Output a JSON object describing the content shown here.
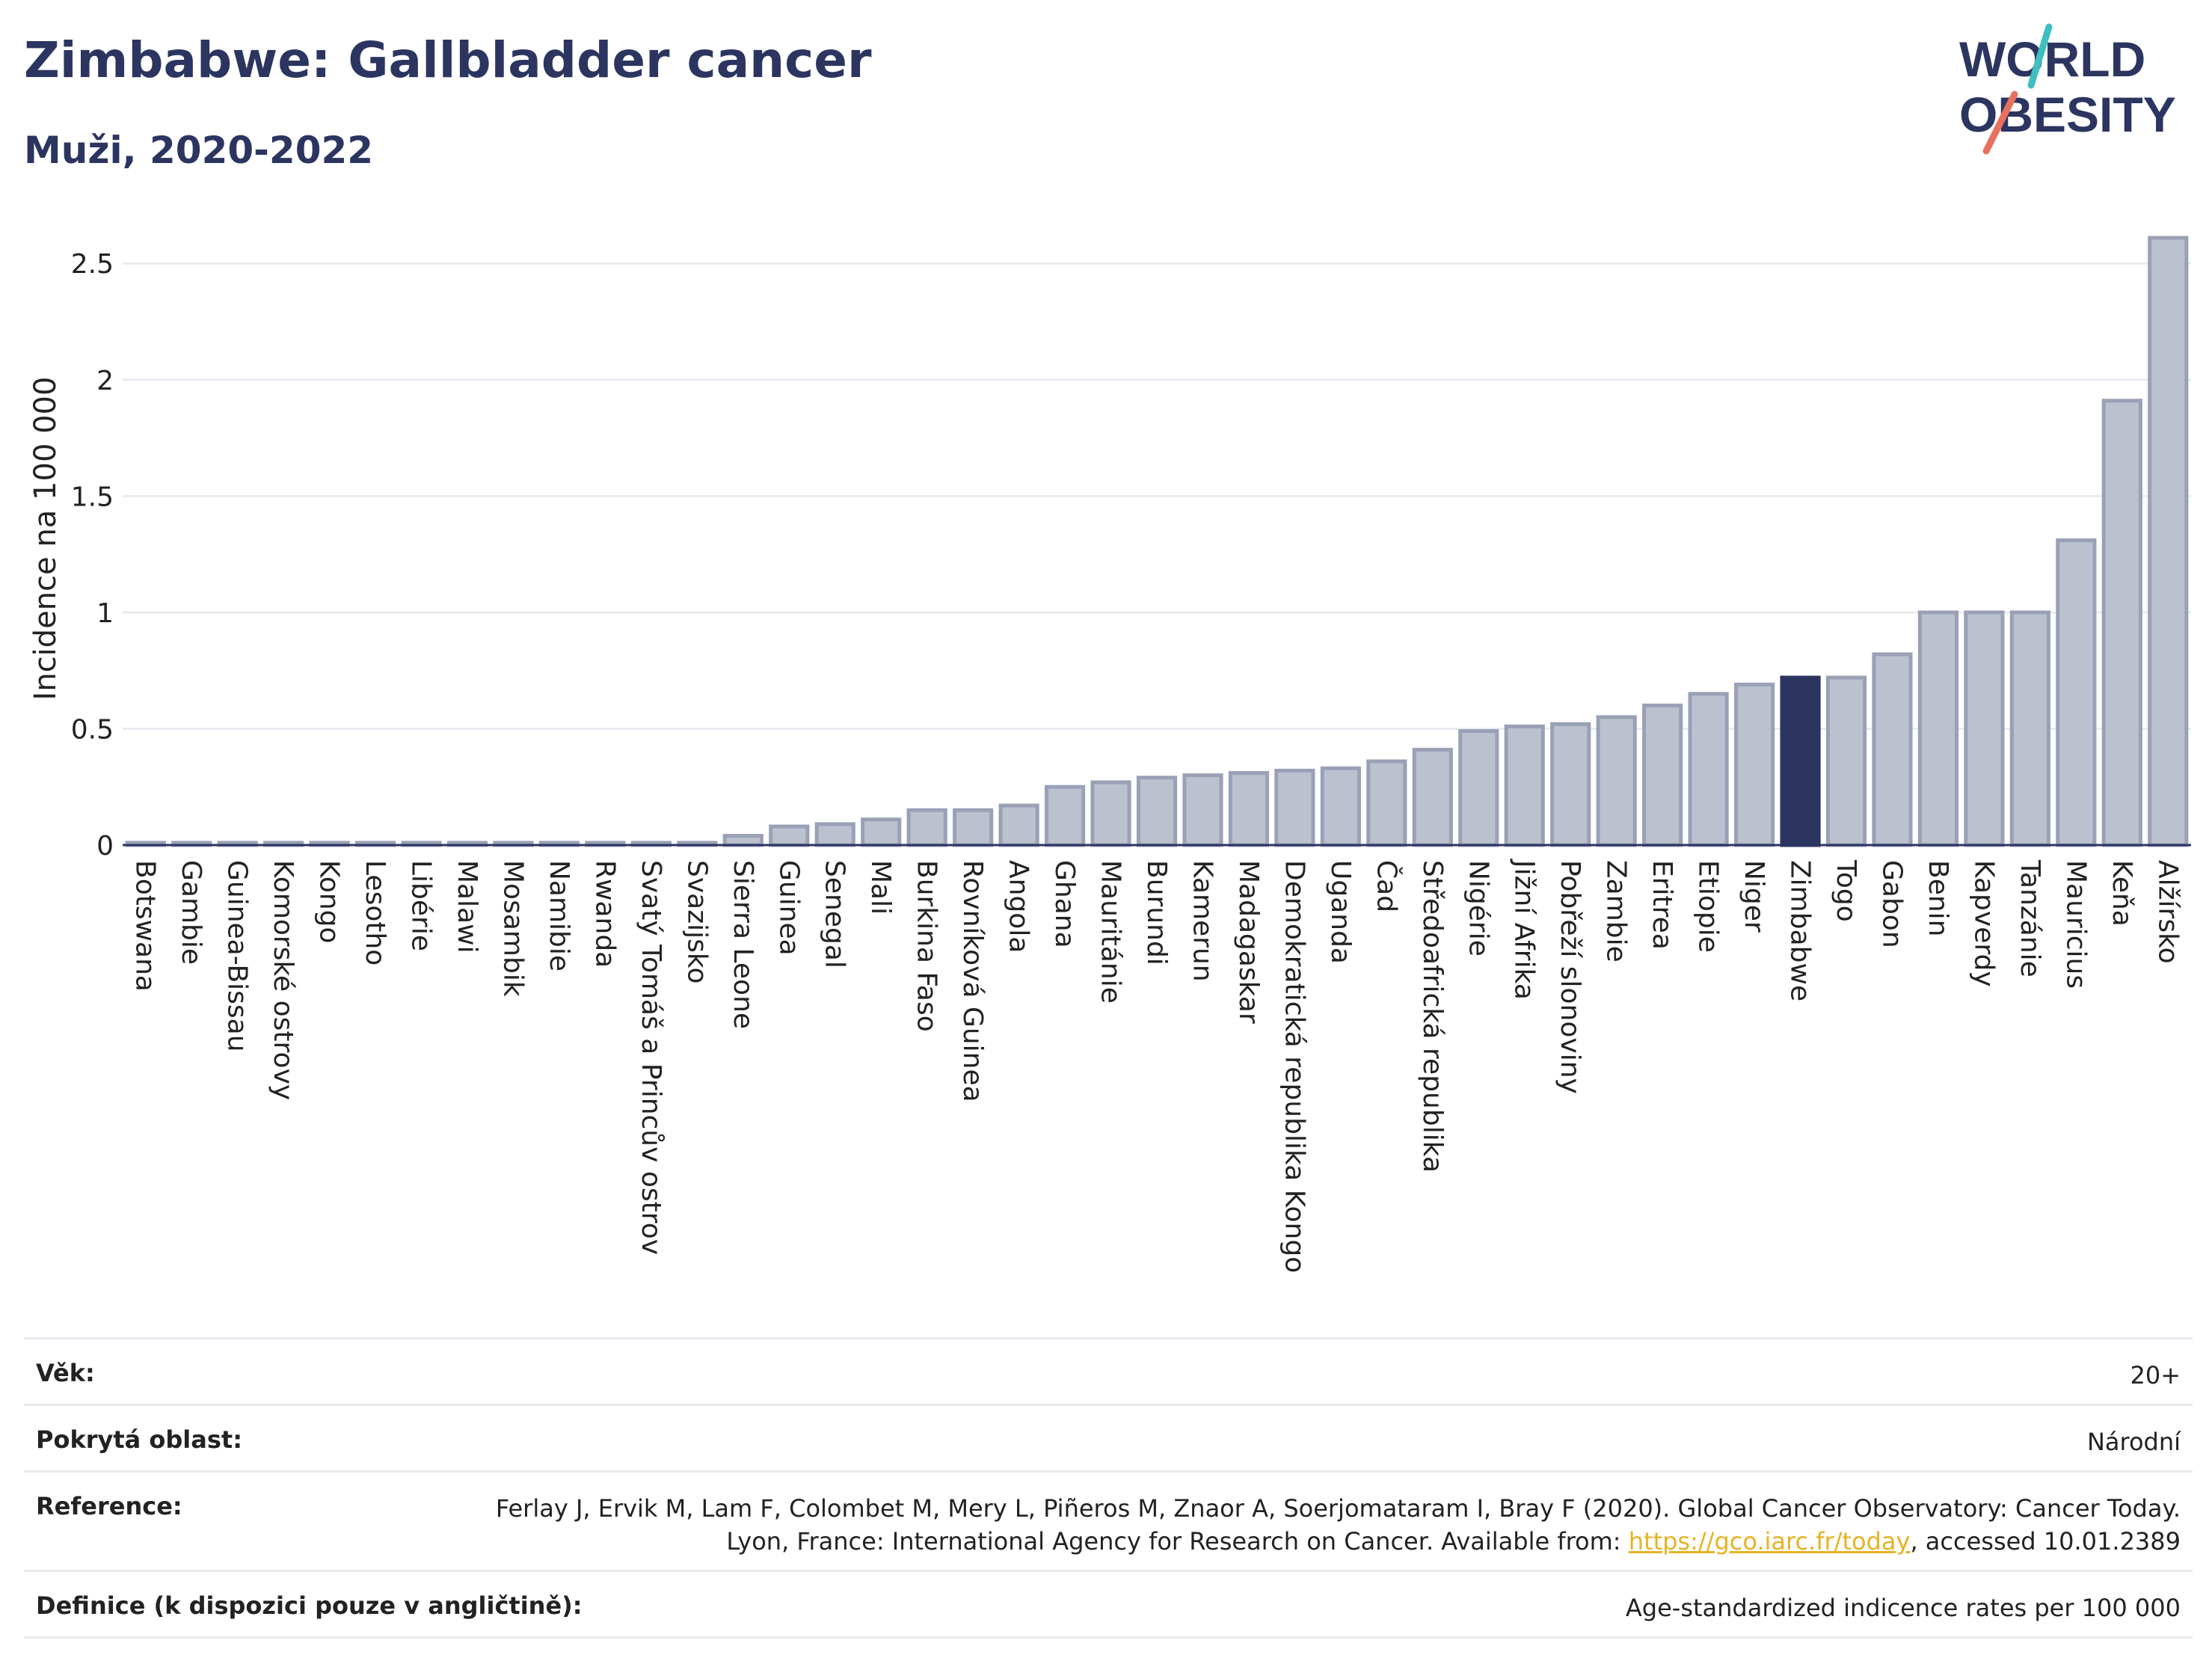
{
  "header": {
    "title": "Zimbabwe: Gallbladder cancer",
    "subtitle": "Muži, 2020-2022"
  },
  "logo": {
    "line1": "WORLD",
    "line2": "OBESITY",
    "colors": {
      "text": "#2c3560",
      "slash_top": "#3fbfbf",
      "slash_bottom": "#e8705f"
    }
  },
  "colors": {
    "bar_fill": "#bcc1cf",
    "bar_stroke": "#9aa1b6",
    "highlight": "#2c3560",
    "grid": "#e8ebf0",
    "axis": "#2c3560"
  },
  "chart_data": {
    "type": "bar",
    "title": "Zimbabwe: Gallbladder cancer",
    "subtitle": "Muži, 2020-2022",
    "ylabel": "Incidence na 100 000",
    "xlabel": "",
    "ylim": [
      0,
      2.7
    ],
    "yticks": [
      0,
      0.5,
      1,
      1.5,
      2,
      2.5
    ],
    "ytick_labels": [
      "0",
      "0.5",
      "1",
      "1.5",
      "2",
      "2.5"
    ],
    "grid": true,
    "highlight": "Zimbabwe",
    "categories": [
      "Botswana",
      "Gambie",
      "Guinea-Bissau",
      "Komorské ostrovy",
      "Kongo",
      "Lesotho",
      "Libérie",
      "Malawi",
      "Mosambik",
      "Namibie",
      "Rwanda",
      "Svatý Tomáš a Princův ostrov",
      "Svazijsko",
      "Sierra Leone",
      "Guinea",
      "Senegal",
      "Mali",
      "Burkina Faso",
      "Rovníková Guinea",
      "Angola",
      "Ghana",
      "Mauritánie",
      "Burundi",
      "Kamerun",
      "Madagaskar",
      "Demokratická republika Kongo",
      "Uganda",
      "Čad",
      "Středoafrická republika",
      "Nigérie",
      "Jižní Afrika",
      "Pobřeží slonoviny",
      "Zambie",
      "Eritrea",
      "Etiopie",
      "Niger",
      "Zimbabwe",
      "Togo",
      "Gabon",
      "Benin",
      "Kapverdy",
      "Tanzánie",
      "Mauricius",
      "Keňa",
      "Alžírsko"
    ],
    "values": [
      0.01,
      0.01,
      0.01,
      0.01,
      0.01,
      0.01,
      0.01,
      0.01,
      0.01,
      0.01,
      0.01,
      0.01,
      0.01,
      0.04,
      0.08,
      0.09,
      0.11,
      0.15,
      0.15,
      0.17,
      0.25,
      0.27,
      0.29,
      0.3,
      0.31,
      0.32,
      0.33,
      0.36,
      0.41,
      0.49,
      0.51,
      0.52,
      0.55,
      0.6,
      0.65,
      0.69,
      0.72,
      0.72,
      0.82,
      1.0,
      1.0,
      1.0,
      1.31,
      1.91,
      2.61
    ]
  },
  "meta": {
    "rows": [
      {
        "label": "Věk:",
        "value": "20+"
      },
      {
        "label": "Pokrytá oblast:",
        "value": "Národní"
      },
      {
        "label": "Reference:",
        "value_pre": "Ferlay J, Ervik M, Lam F, Colombet M, Mery L, Piñeros M, Znaor A, Soerjomataram I, Bray F (2020). Global Cancer Observatory: Cancer Today. Lyon, France: International Agency for Research on Cancer. Available from: ",
        "link": "https://gco.iarc.fr/today",
        "value_post": ", accessed 10.01.2389"
      },
      {
        "label": "Definice (k dispozici pouze v angličtině):",
        "value": "Age-standardized indicence rates per 100 000"
      }
    ]
  }
}
